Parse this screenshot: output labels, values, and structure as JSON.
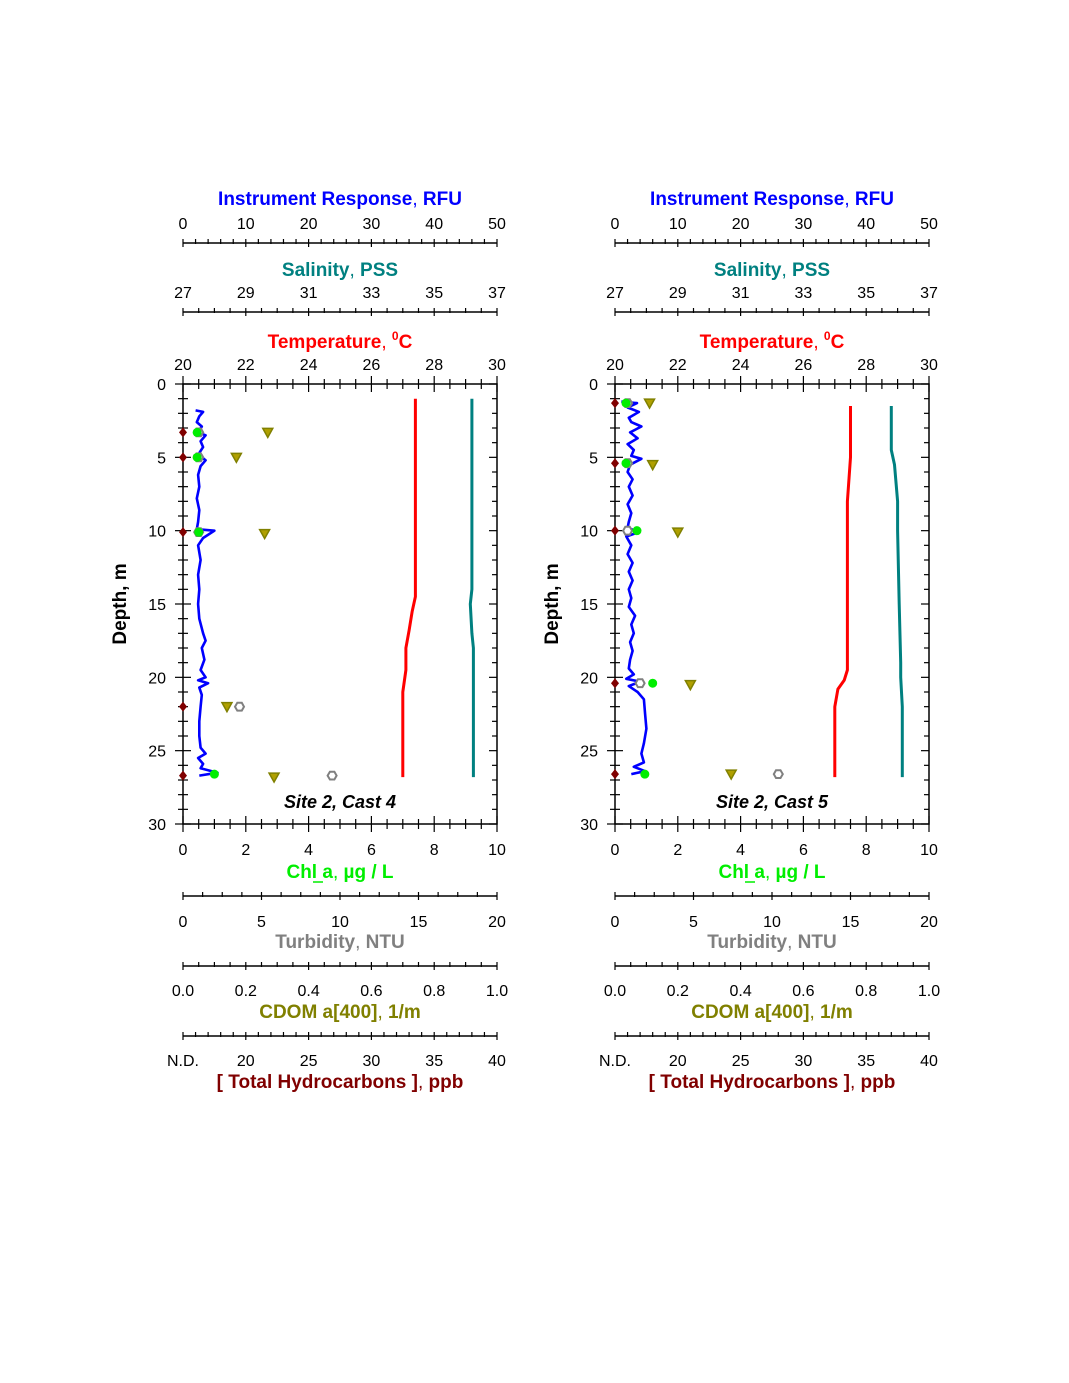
{
  "chart_data": [
    {
      "type": "line",
      "title": "Site 2, Cast 4",
      "ylabel": "Depth, m",
      "ylim": [
        0,
        30
      ],
      "y_ticks": [
        "0",
        "5",
        "10",
        "15",
        "20",
        "25",
        "30"
      ],
      "axes": {
        "rfu": {
          "label": "Instrument Response",
          "unit": "RFU",
          "range": [
            0,
            50
          ],
          "ticks": [
            "0",
            "10",
            "20",
            "30",
            "40",
            "50"
          ],
          "color": "#0000ff"
        },
        "salinity": {
          "label": "Salinity",
          "unit": "PSS",
          "range": [
            27,
            37
          ],
          "ticks": [
            "27",
            "29",
            "31",
            "33",
            "35",
            "37"
          ],
          "color": "#008080"
        },
        "temperature": {
          "label": "Temperature",
          "unit": "C",
          "unit_sup": "0",
          "range": [
            20,
            30
          ],
          "ticks": [
            "20",
            "22",
            "24",
            "26",
            "28",
            "30"
          ],
          "color": "#ff0000"
        },
        "chl": {
          "label": "Chl a",
          "unit": "µg / L",
          "range": [
            0,
            10
          ],
          "ticks": [
            "0",
            "2",
            "4",
            "6",
            "8",
            "10"
          ],
          "color": "#00ee00"
        },
        "turbidity": {
          "label": "Turbidity",
          "unit": "NTU",
          "range": [
            0,
            20
          ],
          "ticks": [
            "0",
            "5",
            "10",
            "15",
            "20"
          ],
          "color": "#808080"
        },
        "cdom": {
          "label": "CDOM a[400]",
          "unit": "1/m",
          "range": [
            0,
            1
          ],
          "ticks": [
            "0.0",
            "0.2",
            "0.4",
            "0.6",
            "0.8",
            "1.0"
          ],
          "color": "#808000"
        },
        "hydrocarbons": {
          "label": "[ Total Hydrocarbons ]",
          "unit": "ppb",
          "range": [
            15,
            40
          ],
          "ticks": [
            "N.D.",
            "20",
            "25",
            "30",
            "35",
            "40"
          ],
          "color": "#800000"
        }
      },
      "series": [
        {
          "name": "Temperature",
          "axis": "temperature",
          "color": "#ff0000",
          "points": [
            [
              27.4,
              1.0
            ],
            [
              27.4,
              14.5
            ],
            [
              27.3,
              15.5
            ],
            [
              27.2,
              16.8
            ],
            [
              27.1,
              18.0
            ],
            [
              27.1,
              19.5
            ],
            [
              27.0,
              21.0
            ],
            [
              27.0,
              26.8
            ]
          ]
        },
        {
          "name": "Salinity",
          "axis": "salinity",
          "color": "#008080",
          "points": [
            [
              36.2,
              1.0
            ],
            [
              36.2,
              14.0
            ],
            [
              36.15,
              15.0
            ],
            [
              36.2,
              17.0
            ],
            [
              36.25,
              18.0
            ],
            [
              36.25,
              26.8
            ]
          ]
        },
        {
          "name": "Instrument Response",
          "axis": "rfu",
          "color": "#0000ff",
          "points": [
            [
              2.0,
              1.8
            ],
            [
              3.2,
              1.9
            ],
            [
              2.6,
              2.2
            ],
            [
              2.2,
              2.6
            ],
            [
              3.0,
              2.9
            ],
            [
              2.4,
              3.3
            ],
            [
              3.6,
              3.5
            ],
            [
              2.8,
              3.9
            ],
            [
              3.2,
              4.3
            ],
            [
              2.6,
              4.7
            ],
            [
              3.0,
              5.0
            ],
            [
              3.6,
              5.2
            ],
            [
              2.8,
              5.6
            ],
            [
              2.4,
              6.2
            ],
            [
              2.6,
              7.0
            ],
            [
              2.2,
              7.8
            ],
            [
              2.6,
              8.6
            ],
            [
              2.4,
              9.4
            ],
            [
              2.2,
              9.9
            ],
            [
              5.0,
              10.0
            ],
            [
              3.2,
              10.5
            ],
            [
              2.4,
              11.0
            ],
            [
              2.8,
              12.0
            ],
            [
              2.4,
              13.0
            ],
            [
              2.6,
              14.0
            ],
            [
              2.4,
              15.0
            ],
            [
              2.6,
              16.0
            ],
            [
              3.2,
              17.0
            ],
            [
              3.6,
              17.5
            ],
            [
              3.0,
              18.0
            ],
            [
              3.4,
              18.8
            ],
            [
              2.8,
              19.5
            ],
            [
              3.6,
              20.0
            ],
            [
              2.4,
              20.2
            ],
            [
              4.0,
              20.4
            ],
            [
              2.6,
              20.7
            ],
            [
              3.0,
              21.2
            ],
            [
              2.8,
              22.0
            ],
            [
              2.6,
              23.0
            ],
            [
              2.6,
              24.0
            ],
            [
              2.8,
              24.8
            ],
            [
              3.6,
              25.2
            ],
            [
              2.4,
              25.5
            ],
            [
              3.2,
              25.9
            ],
            [
              2.8,
              26.2
            ],
            [
              5.5,
              26.5
            ],
            [
              2.6,
              26.7
            ]
          ]
        }
      ],
      "markers": [
        {
          "name": "Total Hydrocarbons",
          "axis": "hydrocarbons",
          "shape": "diamond",
          "color": "#800000",
          "points": [
            [
              15,
              3.3
            ],
            [
              15,
              5.0
            ],
            [
              15,
              10.1
            ],
            [
              15,
              22.0
            ],
            [
              15,
              26.7
            ]
          ]
        },
        {
          "name": "CDOM a[400]",
          "axis": "cdom",
          "shape": "triangle-down",
          "color": "#808000",
          "points": [
            [
              0.27,
              3.3
            ],
            [
              0.17,
              5.0
            ],
            [
              0.26,
              10.2
            ],
            [
              0.14,
              22.0
            ],
            [
              0.29,
              26.8
            ]
          ]
        },
        {
          "name": "Turbidity",
          "axis": "turbidity",
          "shape": "hexagon-open",
          "color": "#808080",
          "points": [
            [
              1.0,
              3.3
            ],
            [
              1.0,
              5.0
            ],
            [
              1.0,
              10.1
            ],
            [
              3.6,
              22.0
            ],
            [
              9.5,
              26.7
            ]
          ]
        },
        {
          "name": "Chl a",
          "axis": "chl",
          "shape": "circle",
          "color": "#00ee00",
          "points": [
            [
              0.45,
              3.3
            ],
            [
              0.45,
              5.0
            ],
            [
              0.5,
              10.1
            ],
            [
              1.0,
              26.6
            ]
          ]
        }
      ]
    },
    {
      "type": "line",
      "title": "Site 2, Cast 5",
      "ylabel": "Depth, m",
      "ylim": [
        0,
        30
      ],
      "y_ticks": [
        "0",
        "5",
        "10",
        "15",
        "20",
        "25",
        "30"
      ],
      "axes": {
        "rfu": {
          "label": "Instrument Response",
          "unit": "RFU",
          "range": [
            0,
            50
          ],
          "ticks": [
            "0",
            "10",
            "20",
            "30",
            "40",
            "50"
          ],
          "color": "#0000ff"
        },
        "salinity": {
          "label": "Salinity",
          "unit": "PSS",
          "range": [
            27,
            37
          ],
          "ticks": [
            "27",
            "29",
            "31",
            "33",
            "35",
            "37"
          ],
          "color": "#008080"
        },
        "temperature": {
          "label": "Temperature",
          "unit": "C",
          "unit_sup": "0",
          "range": [
            20,
            30
          ],
          "ticks": [
            "20",
            "22",
            "24",
            "26",
            "28",
            "30"
          ],
          "color": "#ff0000"
        },
        "chl": {
          "label": "Chl a",
          "unit": "µg / L",
          "range": [
            0,
            10
          ],
          "ticks": [
            "0",
            "2",
            "4",
            "6",
            "8",
            "10"
          ],
          "color": "#00ee00"
        },
        "turbidity": {
          "label": "Turbidity",
          "unit": "NTU",
          "range": [
            0,
            20
          ],
          "ticks": [
            "0",
            "5",
            "10",
            "15",
            "20"
          ],
          "color": "#808080"
        },
        "cdom": {
          "label": "CDOM a[400]",
          "unit": "1/m",
          "range": [
            0,
            1
          ],
          "ticks": [
            "0.0",
            "0.2",
            "0.4",
            "0.6",
            "0.8",
            "1.0"
          ],
          "color": "#808000"
        },
        "hydrocarbons": {
          "label": "[ Total Hydrocarbons ]",
          "unit": "ppb",
          "range": [
            15,
            40
          ],
          "ticks": [
            "N.D.",
            "20",
            "25",
            "30",
            "35",
            "40"
          ],
          "color": "#800000"
        }
      },
      "series": [
        {
          "name": "Temperature",
          "axis": "temperature",
          "color": "#ff0000",
          "points": [
            [
              27.5,
              1.5
            ],
            [
              27.5,
              5.0
            ],
            [
              27.4,
              8.0
            ],
            [
              27.4,
              19.5
            ],
            [
              27.3,
              20.2
            ],
            [
              27.1,
              20.8
            ],
            [
              27.0,
              22.0
            ],
            [
              27.0,
              26.8
            ]
          ]
        },
        {
          "name": "Salinity",
          "axis": "salinity",
          "color": "#008080",
          "points": [
            [
              35.8,
              1.5
            ],
            [
              35.8,
              4.5
            ],
            [
              35.9,
              5.5
            ],
            [
              36.0,
              8.0
            ],
            [
              36.0,
              10.0
            ],
            [
              36.05,
              15.0
            ],
            [
              36.1,
              19.0
            ],
            [
              36.1,
              20.0
            ],
            [
              36.15,
              22.0
            ],
            [
              36.15,
              26.8
            ]
          ]
        },
        {
          "name": "Instrument Response",
          "axis": "rfu",
          "color": "#0000ff",
          "points": [
            [
              1.0,
              1.2
            ],
            [
              3.5,
              1.3
            ],
            [
              2.0,
              1.6
            ],
            [
              3.8,
              1.9
            ],
            [
              2.2,
              2.3
            ],
            [
              2.6,
              2.6
            ],
            [
              4.2,
              2.9
            ],
            [
              2.4,
              3.3
            ],
            [
              3.6,
              3.7
            ],
            [
              2.0,
              4.1
            ],
            [
              3.0,
              4.5
            ],
            [
              2.6,
              4.9
            ],
            [
              4.2,
              5.1
            ],
            [
              2.4,
              5.5
            ],
            [
              2.0,
              6.0
            ],
            [
              2.8,
              6.5
            ],
            [
              2.2,
              7.0
            ],
            [
              2.8,
              7.6
            ],
            [
              2.0,
              8.2
            ],
            [
              2.6,
              8.8
            ],
            [
              2.2,
              9.4
            ],
            [
              2.0,
              9.8
            ],
            [
              3.8,
              10.1
            ],
            [
              1.8,
              10.4
            ],
            [
              2.6,
              11.0
            ],
            [
              2.0,
              11.6
            ],
            [
              2.8,
              12.2
            ],
            [
              2.2,
              12.8
            ],
            [
              2.8,
              13.4
            ],
            [
              2.2,
              14.0
            ],
            [
              2.6,
              14.6
            ],
            [
              2.2,
              15.2
            ],
            [
              3.2,
              15.8
            ],
            [
              2.6,
              16.4
            ],
            [
              3.0,
              17.0
            ],
            [
              2.4,
              17.6
            ],
            [
              2.8,
              18.2
            ],
            [
              2.4,
              18.8
            ],
            [
              2.2,
              19.4
            ],
            [
              3.0,
              19.8
            ],
            [
              1.8,
              20.1
            ],
            [
              4.0,
              20.3
            ],
            [
              2.2,
              20.6
            ],
            [
              3.6,
              21.0
            ],
            [
              4.6,
              21.5
            ],
            [
              4.8,
              22.5
            ],
            [
              5.0,
              23.5
            ],
            [
              4.6,
              24.5
            ],
            [
              4.2,
              25.2
            ],
            [
              4.6,
              25.8
            ],
            [
              3.0,
              26.1
            ],
            [
              4.8,
              26.4
            ],
            [
              2.6,
              26.6
            ]
          ]
        }
      ],
      "markers": [
        {
          "name": "Total Hydrocarbons",
          "axis": "hydrocarbons",
          "shape": "diamond",
          "color": "#800000",
          "points": [
            [
              15,
              1.3
            ],
            [
              15,
              5.4
            ],
            [
              15,
              10.0
            ],
            [
              15,
              20.4
            ],
            [
              15,
              26.6
            ]
          ]
        },
        {
          "name": "CDOM a[400]",
          "axis": "cdom",
          "shape": "triangle-down",
          "color": "#808000",
          "points": [
            [
              0.11,
              1.3
            ],
            [
              0.12,
              5.5
            ],
            [
              0.2,
              10.1
            ],
            [
              0.24,
              20.5
            ],
            [
              0.37,
              26.6
            ]
          ]
        },
        {
          "name": "Turbidity",
          "axis": "turbidity",
          "shape": "hexagon-open",
          "color": "#808080",
          "points": [
            [
              0.8,
              1.3
            ],
            [
              0.8,
              5.4
            ],
            [
              0.8,
              10.0
            ],
            [
              1.6,
              20.4
            ],
            [
              10.4,
              26.6
            ]
          ]
        },
        {
          "name": "Chl a",
          "axis": "chl",
          "shape": "circle",
          "color": "#00ee00",
          "points": [
            [
              0.35,
              1.3
            ],
            [
              0.35,
              5.4
            ],
            [
              0.7,
              10.0
            ],
            [
              1.2,
              20.4
            ],
            [
              0.95,
              26.6
            ]
          ]
        }
      ]
    }
  ]
}
